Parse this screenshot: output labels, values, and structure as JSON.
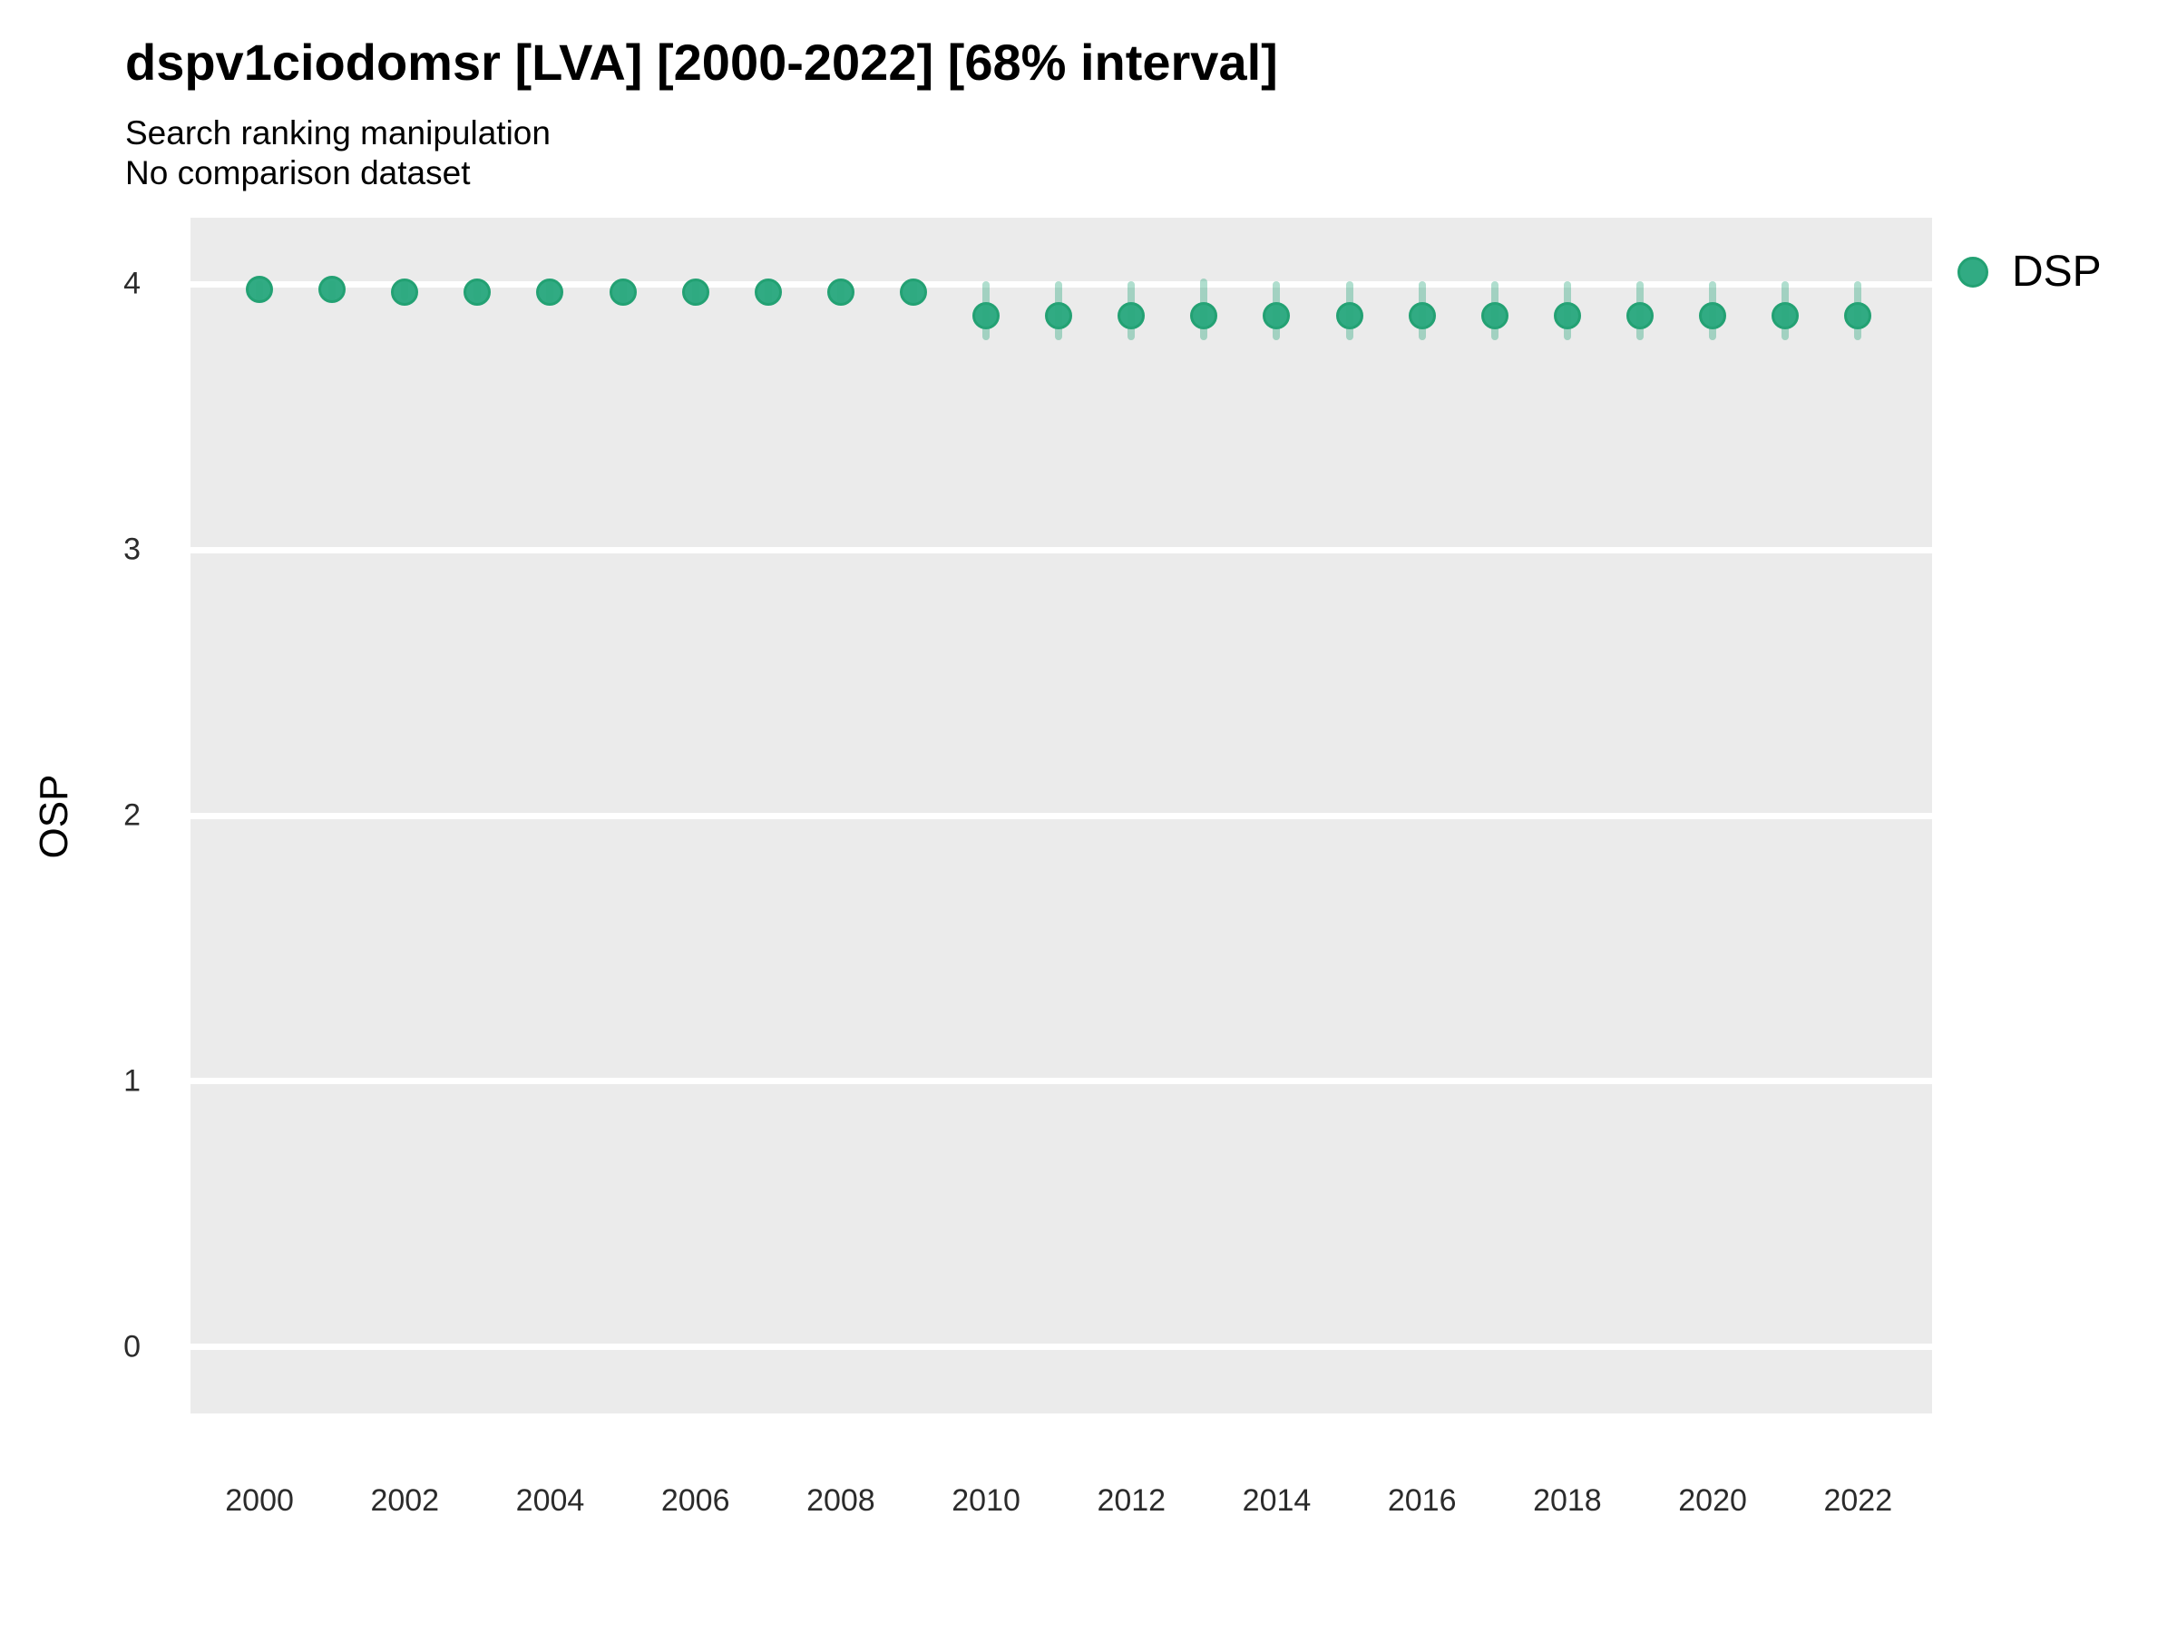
{
  "header": {
    "title": "dspv1ciodomsr [LVA] [2000-2022] [68% interval]",
    "subtitle_line1": "Search ranking manipulation",
    "subtitle_line2": "No comparison dataset"
  },
  "colors": {
    "panel_bg": "#ebebeb",
    "gridline": "#ffffff",
    "point_fill": "#31ab83",
    "point_stroke": "#23a173",
    "interval": "rgba(46,168,126,0.38)"
  },
  "legend": {
    "entries": [
      {
        "label": "DSP",
        "color": "#31ab83"
      }
    ],
    "position": "right"
  },
  "chart_data": {
    "type": "scatter",
    "title": "dspv1ciodomsr [LVA] [2000-2022] [68% interval]",
    "subtitle": "Search ranking manipulation",
    "note": "No comparison dataset",
    "xlabel": "",
    "ylabel": "OSP",
    "interval_level": "68%",
    "x_ticks": [
      2000,
      2002,
      2004,
      2006,
      2008,
      2010,
      2012,
      2014,
      2016,
      2018,
      2020,
      2022
    ],
    "y_ticks": [
      0,
      1,
      2,
      3,
      4
    ],
    "xlim": [
      1999.05,
      2023.02
    ],
    "ylim": [
      -0.25,
      4.25
    ],
    "grid": "major-horizontal-only",
    "legend_position": "right",
    "series": [
      {
        "name": "DSP",
        "points": [
          {
            "x": 2000,
            "y": 3.98,
            "lo": 3.94,
            "hi": 4.01
          },
          {
            "x": 2001,
            "y": 3.98,
            "lo": 3.94,
            "hi": 4.01
          },
          {
            "x": 2002,
            "y": 3.97,
            "lo": 3.94,
            "hi": 4.01
          },
          {
            "x": 2003,
            "y": 3.97,
            "lo": 3.94,
            "hi": 4.01
          },
          {
            "x": 2004,
            "y": 3.97,
            "lo": 3.93,
            "hi": 4.01
          },
          {
            "x": 2005,
            "y": 3.97,
            "lo": 3.93,
            "hi": 4.01
          },
          {
            "x": 2006,
            "y": 3.97,
            "lo": 3.93,
            "hi": 4.01
          },
          {
            "x": 2007,
            "y": 3.97,
            "lo": 3.93,
            "hi": 4.01
          },
          {
            "x": 2008,
            "y": 3.97,
            "lo": 3.93,
            "hi": 4.01
          },
          {
            "x": 2009,
            "y": 3.97,
            "lo": 3.93,
            "hi": 4.01
          },
          {
            "x": 2010,
            "y": 3.88,
            "lo": 3.79,
            "hi": 4.01
          },
          {
            "x": 2011,
            "y": 3.88,
            "lo": 3.79,
            "hi": 4.01
          },
          {
            "x": 2012,
            "y": 3.88,
            "lo": 3.79,
            "hi": 4.01
          },
          {
            "x": 2013,
            "y": 3.88,
            "lo": 3.79,
            "hi": 4.02
          },
          {
            "x": 2014,
            "y": 3.88,
            "lo": 3.79,
            "hi": 4.01
          },
          {
            "x": 2015,
            "y": 3.88,
            "lo": 3.79,
            "hi": 4.01
          },
          {
            "x": 2016,
            "y": 3.88,
            "lo": 3.79,
            "hi": 4.01
          },
          {
            "x": 2017,
            "y": 3.88,
            "lo": 3.79,
            "hi": 4.01
          },
          {
            "x": 2018,
            "y": 3.88,
            "lo": 3.79,
            "hi": 4.01
          },
          {
            "x": 2019,
            "y": 3.88,
            "lo": 3.79,
            "hi": 4.01
          },
          {
            "x": 2020,
            "y": 3.88,
            "lo": 3.79,
            "hi": 4.01
          },
          {
            "x": 2021,
            "y": 3.88,
            "lo": 3.79,
            "hi": 4.01
          },
          {
            "x": 2022,
            "y": 3.88,
            "lo": 3.79,
            "hi": 4.01
          }
        ]
      }
    ]
  }
}
